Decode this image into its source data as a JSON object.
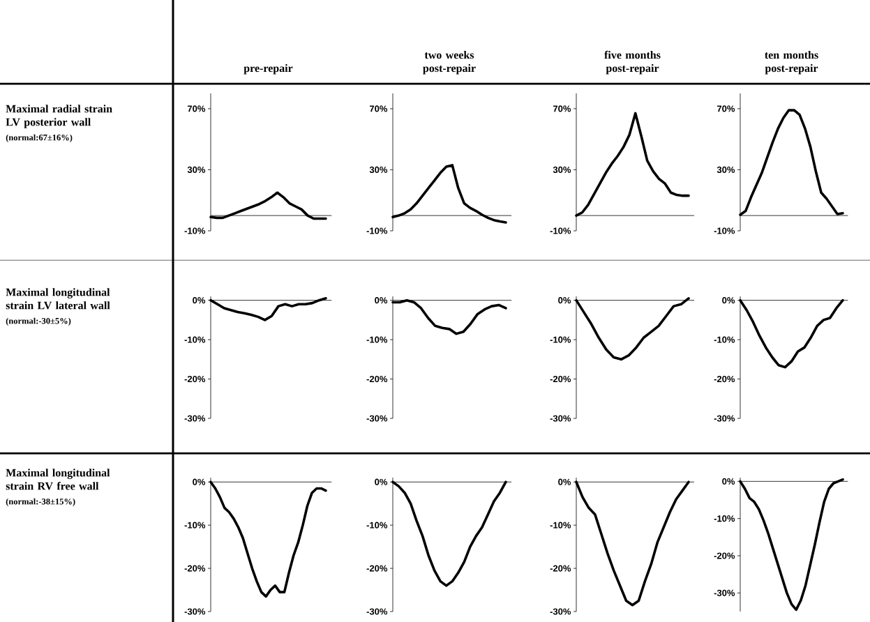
{
  "chart_data": [
    {
      "type": "line",
      "title": "pre-repair",
      "ylabel": "Maximal radial strain LV posterior wall",
      "annotations": [
        "(normal:67±16%)"
      ],
      "categories": [
        null,
        null,
        null,
        null,
        null,
        null,
        null,
        null,
        null,
        null,
        null,
        null,
        null,
        null,
        null,
        null,
        null,
        null,
        null,
        null
      ],
      "series": [
        {
          "color": "#000000",
          "values": [
            -1,
            -1.5,
            -1.5,
            0,
            1.5,
            3,
            4.5,
            6,
            7.5,
            9.5,
            12,
            15,
            12,
            8,
            6,
            4,
            0,
            -2,
            -2,
            -2
          ]
        }
      ],
      "ylim": [
        -10,
        80
      ],
      "yticks": [
        {
          "value": -10,
          "label": "-10%"
        },
        {
          "value": 30,
          "label": "30%"
        },
        {
          "value": 70,
          "label": "70%"
        }
      ],
      "tick_labels": "y",
      "ref_lines": [
        {
          "axis": "y",
          "value": 0
        }
      ]
    },
    {
      "type": "line",
      "title": "two weeks post-repair",
      "categories": [
        null,
        null,
        null,
        null,
        null,
        null,
        null,
        null,
        null,
        null,
        null,
        null,
        null,
        null,
        null,
        null,
        null,
        null,
        null,
        null
      ],
      "series": [
        {
          "color": "#000000",
          "values": [
            -1,
            0,
            1.5,
            4,
            8,
            13,
            18,
            23,
            28,
            32,
            33,
            18,
            8,
            5,
            3,
            0.5,
            -1.5,
            -3,
            -3.8,
            -4.5
          ]
        }
      ],
      "ylim": [
        -10,
        80
      ],
      "yticks": [
        {
          "value": -10,
          "label": "-10%"
        },
        {
          "value": 30,
          "label": "30%"
        },
        {
          "value": 70,
          "label": "70%"
        }
      ],
      "tick_labels": "y",
      "ref_lines": [
        {
          "axis": "y",
          "value": 0
        }
      ]
    },
    {
      "type": "line",
      "title": "five months post-repair",
      "categories": [
        null,
        null,
        null,
        null,
        null,
        null,
        null,
        null,
        null,
        null,
        null,
        null,
        null,
        null,
        null,
        null,
        null,
        null,
        null,
        null
      ],
      "series": [
        {
          "color": "#000000",
          "values": [
            0,
            2,
            7,
            14,
            21,
            28,
            34,
            39,
            45,
            53,
            67,
            52,
            36,
            29,
            24,
            21,
            15,
            13.5,
            13,
            13
          ]
        }
      ],
      "ylim": [
        -10,
        80
      ],
      "yticks": [
        {
          "value": -10,
          "label": "-10%"
        },
        {
          "value": 30,
          "label": "30%"
        },
        {
          "value": 70,
          "label": "70%"
        }
      ],
      "tick_labels": "y",
      "ref_lines": [
        {
          "axis": "y",
          "value": 0
        }
      ]
    },
    {
      "type": "line",
      "title": "ten months post-repair",
      "categories": [
        null,
        null,
        null,
        null,
        null,
        null,
        null,
        null,
        null,
        null,
        null,
        null,
        null,
        null,
        null,
        null,
        null,
        null,
        null,
        null
      ],
      "series": [
        {
          "color": "#000000",
          "values": [
            0.5,
            3,
            12,
            20,
            28,
            38,
            48,
            57,
            64,
            69,
            69,
            66,
            57,
            45,
            29,
            15,
            11,
            6,
            1,
            1.5
          ]
        }
      ],
      "ylim": [
        -10,
        80
      ],
      "yticks": [
        {
          "value": -10,
          "label": "-10%"
        },
        {
          "value": 30,
          "label": "30%"
        },
        {
          "value": 70,
          "label": "70%"
        }
      ],
      "tick_labels": "y",
      "ref_lines": [
        {
          "axis": "y",
          "value": 0
        }
      ]
    },
    {
      "type": "line",
      "ylabel": "Maximal longitudinal strain LV lateral wall",
      "annotations": [
        "(normal:-30±5%)"
      ],
      "categories": [
        null,
        null,
        null,
        null,
        null,
        null,
        null,
        null,
        null,
        null,
        null,
        null,
        null,
        null,
        null,
        null,
        null,
        null
      ],
      "series": [
        {
          "color": "#000000",
          "values": [
            0,
            -1,
            -2,
            -2.5,
            -3,
            -3.3,
            -3.7,
            -4.2,
            -5,
            -4,
            -1.5,
            -1,
            -1.5,
            -1,
            -1,
            -0.7,
            0,
            0.5
          ]
        }
      ],
      "ylim": [
        -30,
        1
      ],
      "yticks": [
        {
          "value": -30,
          "label": "-30%"
        },
        {
          "value": -20,
          "label": "-20%"
        },
        {
          "value": -10,
          "label": "-10%"
        },
        {
          "value": 0,
          "label": "0%"
        }
      ],
      "tick_labels": "y",
      "ref_lines": [
        {
          "axis": "y",
          "value": 0
        }
      ]
    },
    {
      "type": "line",
      "categories": [
        null,
        null,
        null,
        null,
        null,
        null,
        null,
        null,
        null,
        null,
        null,
        null,
        null,
        null,
        null,
        null,
        null
      ],
      "series": [
        {
          "color": "#000000",
          "values": [
            -0.5,
            -0.5,
            0,
            -0.5,
            -2,
            -4.5,
            -6.5,
            -7,
            -7.3,
            -8.5,
            -8,
            -6,
            -3.5,
            -2.3,
            -1.5,
            -1.2,
            -2
          ]
        }
      ],
      "ylim": [
        -30,
        1
      ],
      "yticks": [
        {
          "value": -30,
          "label": "-30%"
        },
        {
          "value": -20,
          "label": "-20%"
        },
        {
          "value": -10,
          "label": "-10%"
        },
        {
          "value": 0,
          "label": "0%"
        }
      ],
      "tick_labels": "y",
      "ref_lines": [
        {
          "axis": "y",
          "value": 0
        }
      ]
    },
    {
      "type": "line",
      "categories": [
        null,
        null,
        null,
        null,
        null,
        null,
        null,
        null,
        null,
        null,
        null,
        null,
        null,
        null,
        null,
        null
      ],
      "series": [
        {
          "color": "#000000",
          "values": [
            0,
            -3,
            -6,
            -9.5,
            -12.5,
            -14.5,
            -15,
            -14,
            -12,
            -9.5,
            -8,
            -6.5,
            -4,
            -1.5,
            -1,
            0.5
          ]
        }
      ],
      "ylim": [
        -30,
        1
      ],
      "yticks": [
        {
          "value": -30,
          "label": "-30%"
        },
        {
          "value": -20,
          "label": "-20%"
        },
        {
          "value": -10,
          "label": "-10%"
        },
        {
          "value": 0,
          "label": "0%"
        }
      ],
      "tick_labels": "y",
      "ref_lines": [
        {
          "axis": "y",
          "value": 0
        }
      ]
    },
    {
      "type": "line",
      "categories": [
        null,
        null,
        null,
        null,
        null,
        null,
        null,
        null,
        null,
        null,
        null,
        null,
        null,
        null,
        null,
        null,
        null
      ],
      "series": [
        {
          "color": "#000000",
          "values": [
            0,
            -2.5,
            -5.5,
            -9,
            -12,
            -14.5,
            -16.5,
            -17,
            -15.5,
            -13,
            -12,
            -9.5,
            -6.5,
            -5,
            -4.5,
            -2,
            0
          ]
        }
      ],
      "ylim": [
        -30,
        1
      ],
      "yticks": [
        {
          "value": -30,
          "label": "-30%"
        },
        {
          "value": -20,
          "label": "-20%"
        },
        {
          "value": -10,
          "label": "-10%"
        },
        {
          "value": 0,
          "label": "0%"
        }
      ],
      "tick_labels": "y",
      "ref_lines": [
        {
          "axis": "y",
          "value": 0
        }
      ]
    },
    {
      "type": "line",
      "ylabel": "Maximal longitudinal strain RV free wall",
      "annotations": [
        "(normal:-38±15%)"
      ],
      "categories": [
        null,
        null,
        null,
        null,
        null,
        null,
        null,
        null,
        null,
        null,
        null,
        null,
        null,
        null,
        null,
        null,
        null,
        null,
        null,
        null,
        null,
        null,
        null,
        null,
        null,
        null
      ],
      "series": [
        {
          "color": "#000000",
          "values": [
            0,
            -1.5,
            -3.5,
            -6,
            -7,
            -8.5,
            -10.5,
            -13,
            -16.5,
            -20,
            -23,
            -25.5,
            -26.5,
            -25,
            -24,
            -25.5,
            -25.5,
            -21,
            -17,
            -14,
            -10,
            -5.5,
            -2.5,
            -1.5,
            -1.5,
            -2
          ]
        }
      ],
      "ylim": [
        -30,
        1
      ],
      "yticks": [
        {
          "value": -30,
          "label": "-30%"
        },
        {
          "value": -20,
          "label": "-20%"
        },
        {
          "value": -10,
          "label": "-10%"
        },
        {
          "value": 0,
          "label": "0%"
        }
      ],
      "tick_labels": "y",
      "ref_lines": [
        {
          "axis": "y",
          "value": 0
        }
      ]
    },
    {
      "type": "line",
      "categories": [
        null,
        null,
        null,
        null,
        null,
        null,
        null,
        null,
        null,
        null,
        null,
        null,
        null,
        null,
        null,
        null,
        null,
        null,
        null,
        null
      ],
      "series": [
        {
          "color": "#000000",
          "values": [
            0,
            -1,
            -2.5,
            -5,
            -9,
            -12.5,
            -17,
            -20.5,
            -23,
            -24,
            -23,
            -21,
            -18.5,
            -15,
            -12.5,
            -10.5,
            -7.5,
            -4.5,
            -2.5,
            0
          ]
        }
      ],
      "ylim": [
        -30,
        1
      ],
      "yticks": [
        {
          "value": -30,
          "label": "-30%"
        },
        {
          "value": -20,
          "label": "-20%"
        },
        {
          "value": -10,
          "label": "-10%"
        },
        {
          "value": 0,
          "label": "0%"
        }
      ],
      "tick_labels": "y",
      "ref_lines": [
        {
          "axis": "y",
          "value": 0
        }
      ]
    },
    {
      "type": "line",
      "categories": [
        null,
        null,
        null,
        null,
        null,
        null,
        null,
        null,
        null,
        null,
        null,
        null,
        null,
        null,
        null,
        null,
        null,
        null,
        null
      ],
      "series": [
        {
          "color": "#000000",
          "values": [
            0,
            -3.5,
            -6,
            -7.5,
            -12,
            -16.5,
            -20.5,
            -24,
            -27.5,
            -28.5,
            -27.5,
            -23,
            -19,
            -14,
            -10.5,
            -7,
            -4,
            -2,
            0
          ]
        }
      ],
      "ylim": [
        -30,
        1
      ],
      "yticks": [
        {
          "value": -30,
          "label": "-30%"
        },
        {
          "value": -20,
          "label": "-20%"
        },
        {
          "value": -10,
          "label": "-10%"
        },
        {
          "value": 0,
          "label": "0%"
        }
      ],
      "tick_labels": "y",
      "ref_lines": [
        {
          "axis": "y",
          "value": 0
        }
      ]
    },
    {
      "type": "line",
      "categories": [
        null,
        null,
        null,
        null,
        null,
        null,
        null,
        null,
        null,
        null,
        null,
        null,
        null,
        null,
        null,
        null,
        null,
        null,
        null,
        null,
        null,
        null,
        null
      ],
      "series": [
        {
          "color": "#000000",
          "values": [
            0,
            -2,
            -4.5,
            -5.5,
            -7.5,
            -10.5,
            -14,
            -18,
            -22,
            -26,
            -30,
            -33,
            -34.5,
            -32,
            -28,
            -22.5,
            -17,
            -11,
            -5.5,
            -2,
            -0.5,
            0,
            0.5
          ]
        }
      ],
      "ylim": [
        -35,
        1
      ],
      "yticks": [
        {
          "value": -30,
          "label": "-30%"
        },
        {
          "value": -20,
          "label": "-20%"
        },
        {
          "value": -10,
          "label": "-10%"
        },
        {
          "value": 0,
          "label": "0%"
        }
      ],
      "tick_labels": "y",
      "ref_lines": [
        {
          "axis": "y",
          "value": 0
        }
      ]
    }
  ]
}
